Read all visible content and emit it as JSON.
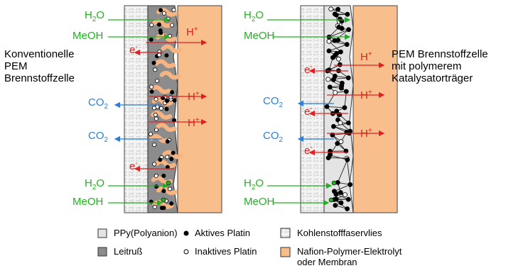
{
  "left_title": [
    "Konventionelle",
    "PEM",
    "Brennstoffzelle"
  ],
  "right_title": [
    "PEM Brennstoffzelle",
    "mit polymerem",
    "Katalysatorträger"
  ],
  "species": {
    "h2o_base": "H",
    "h2o_sub": "2",
    "h2o_tail": "O",
    "meoh": "MeOH",
    "co2_base": "CO",
    "co2_sub": "2",
    "h_base": "H",
    "h_sup": "+",
    "e_base": "e",
    "e_sup": "-"
  },
  "legend": {
    "ppy": "PPy(Polyanion)",
    "active_pt": "Aktives Platin",
    "carbon_fleece": "Kohlenstofffaservlies",
    "soot": "Leitruß",
    "inactive_pt": "Inaktives Platin",
    "nafion_line1": "Nafion-Polymer-Elektrolyt",
    "nafion_line2": "oder Membran"
  },
  "colors": {
    "green": "#22b022",
    "red": "#e02020",
    "blue": "#2a7fd8",
    "membrane": "#f8be8c",
    "soot": "#8c8c8c",
    "ppy": "#e4e4e4",
    "nafion_strand": "#f5b482"
  }
}
